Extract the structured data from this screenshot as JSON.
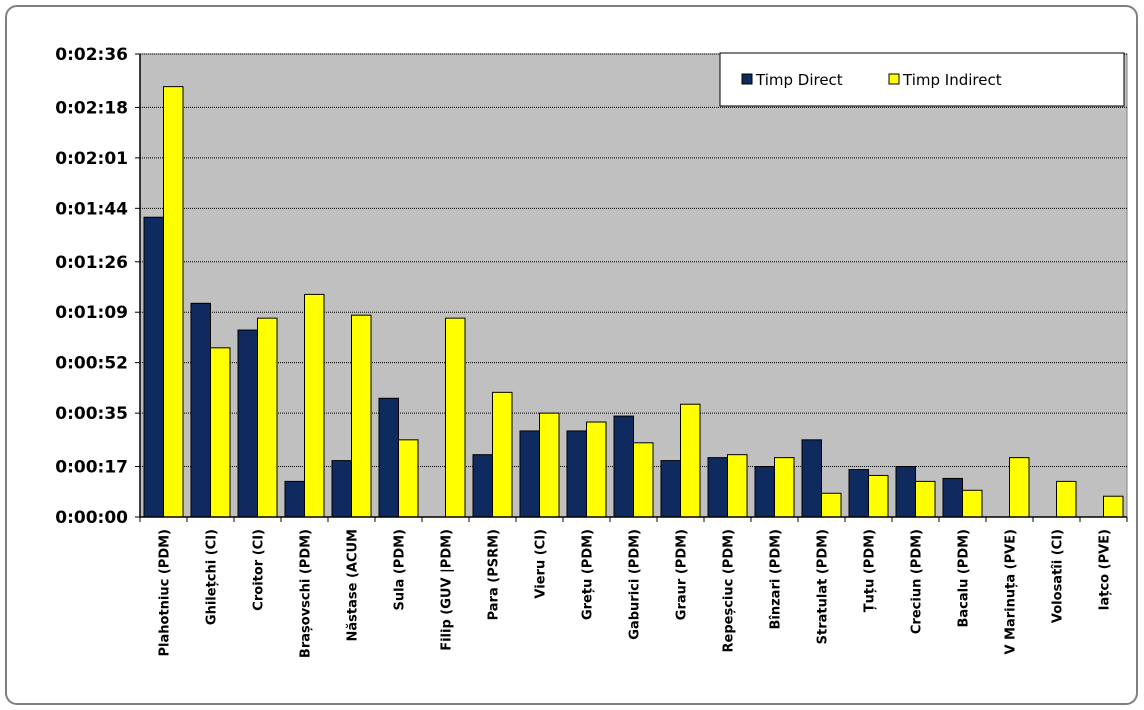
{
  "chart_data": {
    "type": "bar",
    "categories": [
      "Plahotniuc (PDM)",
      "Ghilețchi (CI)",
      "Croitor (CI)",
      "Brașovschi (PDM)",
      "Năstase (ACUM",
      "Sula (PDM)",
      "Filip (GUV |PDM)",
      "Para (PSRM)",
      "Vieru (CI)",
      "Grețu (PDM)",
      "Gaburici (PDM)",
      "Graur (PDM)",
      "Repeșciuc (PDM)",
      "Bînzari (PDM)",
      "Stratulat (PDM)",
      "Țuțu (PDM)",
      "Creciun (PDM)",
      "Bacalu (PDM)",
      "V Marinuța (PVE)",
      "Volosatîi (CI)",
      "Iațco (PVE)"
    ],
    "series": [
      {
        "name": "Timp Direct",
        "color": "#0f2a5e",
        "values": [
          "0:01:41",
          "0:01:12",
          "0:01:03",
          "0:00:12",
          "0:00:19",
          "0:00:40",
          null,
          "0:00:21",
          "0:00:29",
          "0:00:29",
          "0:00:34",
          "0:00:19",
          "0:00:20",
          "0:00:17",
          "0:00:26",
          "0:00:16",
          "0:00:17",
          "0:00:13",
          null,
          null,
          null
        ]
      },
      {
        "name": "Timp Indirect",
        "color": "#ffff00",
        "values": [
          "0:02:25",
          "0:00:57",
          "0:01:07",
          "0:01:15",
          "0:01:08",
          "0:00:26",
          "0:01:07",
          "0:00:42",
          "0:00:35",
          "0:00:32",
          "0:00:25",
          "0:00:38",
          "0:00:21",
          "0:00:20",
          "0:00:08",
          "0:00:14",
          "0:00:12",
          "0:00:09",
          "0:00:20",
          "0:00:12",
          "0:00:07"
        ]
      }
    ],
    "y_ticks": [
      "0:00:00",
      "0:00:17",
      "0:00:35",
      "0:00:52",
      "0:01:09",
      "0:01:26",
      "0:01:44",
      "0:02:01",
      "0:02:18",
      "0:02:36"
    ],
    "ylim": [
      "0:00:00",
      "0:02:36"
    ],
    "grid": true,
    "legend_position": "top-right",
    "plot_background": "#c0c0c0"
  }
}
